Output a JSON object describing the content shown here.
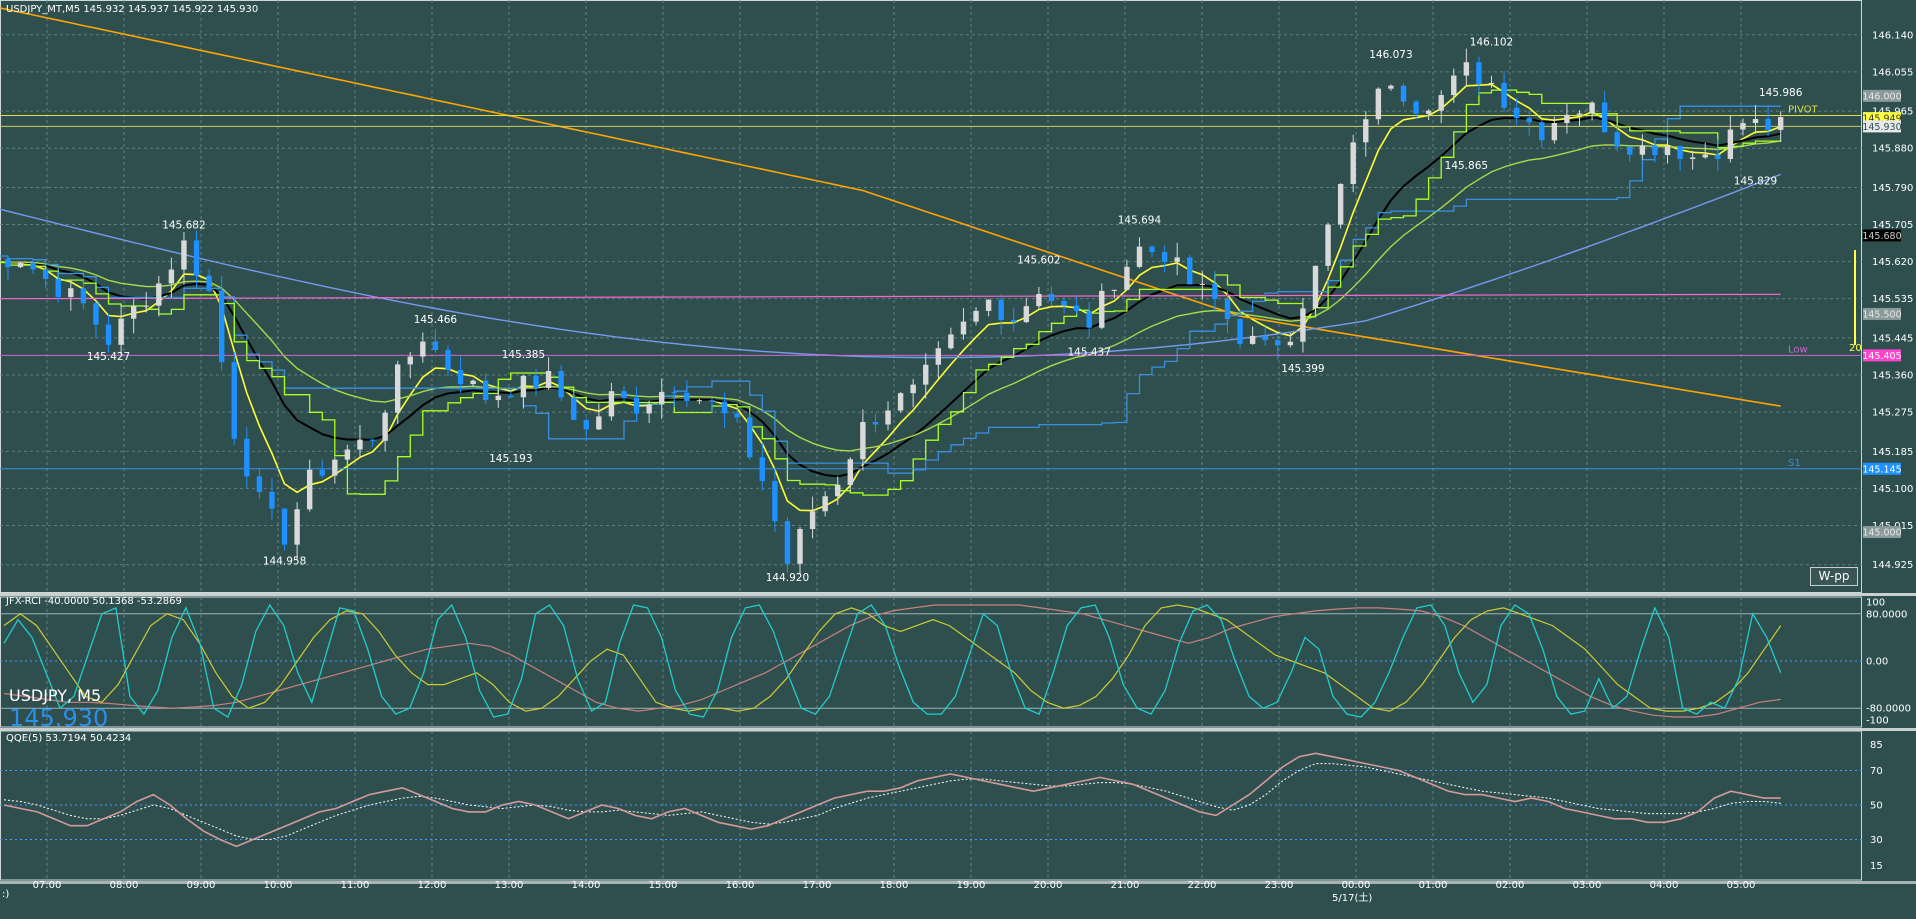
{
  "window": {
    "main_header": "USDJPY_MT,M5  145.932 145.937 145.922 145.930",
    "rci_header": "JFX-RCI -40.0000 50.1368 -53.2869",
    "qqe_header": "QQE(5) 53.7194 50.4234",
    "watermark_symbol": "USDJPY, M5",
    "watermark_price": "145.930",
    "button_label": "W-pp",
    "level_count": "20",
    "date_label": "5/17(土)",
    "corner_mark": ":)"
  },
  "colors": {
    "background": "#2f4f4f",
    "grid": "#6f8f8f",
    "bull_candle": "#d9d9d9",
    "bear_candle": "#1e90ff",
    "ema_yellow": "#ffff33",
    "ema_black": "#000000",
    "ema_green": "#a8d84c",
    "ma200_orange": "#ffa500",
    "ma100_blue": "#7799ee",
    "ichimoku_blue": "#3a8fe0",
    "ichimoku_green": "#aaff22",
    "magenta_line": "#ff66cc",
    "rci_fast": "#22cccc",
    "rci_mid": "#cccc33",
    "rci_slow": "#c98080",
    "qqe_main": "#d29a9a",
    "qqe_signal": "#ffffff"
  },
  "chart_data": [
    {
      "type": "candlestick",
      "symbol": "USDJPY",
      "timeframe": "M5",
      "ylim": [
        144.89,
        146.19
      ],
      "y_ticks": [
        "146.140",
        "146.055",
        "145.965",
        "145.880",
        "145.790",
        "145.705",
        "145.620",
        "145.535",
        "145.445",
        "145.360",
        "145.275",
        "145.185",
        "145.100",
        "145.015",
        "144.925"
      ],
      "x_ticks": [
        "07:00",
        "08:00",
        "09:00",
        "10:00",
        "11:00",
        "12:00",
        "13:00",
        "14:00",
        "15:00",
        "16:00",
        "17:00",
        "18:00",
        "19:00",
        "20:00",
        "21:00",
        "22:00",
        "23:00",
        "00:00",
        "01:00",
        "02:00",
        "03:00",
        "04:00",
        "05:00"
      ],
      "price_path": [
        [
          0,
          145.62
        ],
        [
          3,
          145.63
        ],
        [
          5,
          145.58
        ],
        [
          8,
          145.52
        ],
        [
          10,
          145.44
        ],
        [
          12,
          145.51
        ],
        [
          14,
          145.57
        ],
        [
          16,
          145.66
        ],
        [
          18,
          145.55
        ],
        [
          20,
          145.23
        ],
        [
          22,
          145.07
        ],
        [
          24,
          144.99
        ],
        [
          26,
          145.12
        ],
        [
          28,
          145.17
        ],
        [
          31,
          145.22
        ],
        [
          33,
          145.36
        ],
        [
          35,
          145.45
        ],
        [
          37,
          145.38
        ],
        [
          40,
          145.31
        ],
        [
          42,
          145.33
        ],
        [
          45,
          145.35
        ],
        [
          48,
          145.23
        ],
        [
          50,
          145.31
        ],
        [
          52,
          145.29
        ],
        [
          55,
          145.34
        ],
        [
          58,
          145.29
        ],
        [
          60,
          145.24
        ],
        [
          62,
          145.12
        ],
        [
          64,
          144.93
        ],
        [
          66,
          145.05
        ],
        [
          68,
          145.12
        ],
        [
          70,
          145.24
        ],
        [
          72,
          145.29
        ],
        [
          74,
          145.32
        ],
        [
          76,
          145.4
        ],
        [
          78,
          145.47
        ],
        [
          80,
          145.53
        ],
        [
          82,
          145.49
        ],
        [
          84,
          145.56
        ],
        [
          86,
          145.51
        ],
        [
          88,
          145.48
        ],
        [
          90,
          145.58
        ],
        [
          92,
          145.65
        ],
        [
          94,
          145.64
        ],
        [
          96,
          145.57
        ],
        [
          98,
          145.53
        ],
        [
          100,
          145.45
        ],
        [
          102,
          145.42
        ],
        [
          104,
          145.46
        ],
        [
          106,
          145.6
        ],
        [
          108,
          145.79
        ],
        [
          110,
          145.96
        ],
        [
          112,
          146.04
        ],
        [
          114,
          145.98
        ],
        [
          116,
          146.0
        ],
        [
          118,
          146.06
        ],
        [
          120,
          146.03
        ],
        [
          122,
          145.96
        ],
        [
          124,
          145.92
        ],
        [
          126,
          145.97
        ],
        [
          128,
          145.97
        ],
        [
          130,
          145.9
        ],
        [
          132,
          145.88
        ],
        [
          134,
          145.89
        ],
        [
          136,
          145.86
        ],
        [
          138,
          145.88
        ],
        [
          140,
          145.94
        ],
        [
          142,
          145.93
        ],
        [
          143,
          145.93
        ]
      ],
      "annotations": [
        {
          "label": "145.682",
          "x": 16,
          "y": 145.682,
          "pos": "above"
        },
        {
          "label": "145.427",
          "x": 10,
          "y": 145.427,
          "pos": "below"
        },
        {
          "label": "145.466",
          "x": 36,
          "y": 145.466,
          "pos": "above"
        },
        {
          "label": "145.385",
          "x": 43,
          "y": 145.385,
          "pos": "above"
        },
        {
          "label": "145.193",
          "x": 42,
          "y": 145.193,
          "pos": "below"
        },
        {
          "label": "144.958",
          "x": 24,
          "y": 144.958,
          "pos": "below"
        },
        {
          "label": "144.920",
          "x": 64,
          "y": 144.92,
          "pos": "below"
        },
        {
          "label": "145.602",
          "x": 84,
          "y": 145.602,
          "pos": "above"
        },
        {
          "label": "145.694",
          "x": 92,
          "y": 145.694,
          "pos": "above"
        },
        {
          "label": "145.437",
          "x": 88,
          "y": 145.437,
          "pos": "below"
        },
        {
          "label": "145.399",
          "x": 105,
          "y": 145.399,
          "pos": "below"
        },
        {
          "label": "146.073",
          "x": 112,
          "y": 146.073,
          "pos": "above"
        },
        {
          "label": "146.102",
          "x": 120,
          "y": 146.102,
          "pos": "above"
        },
        {
          "label": "145.865",
          "x": 118,
          "y": 145.865,
          "pos": "below"
        },
        {
          "label": "145.986",
          "x": 143,
          "y": 145.986,
          "pos": "above"
        },
        {
          "label": "145.829",
          "x": 141,
          "y": 145.829,
          "pos": "below"
        }
      ],
      "levels": [
        {
          "name": "PIVOT",
          "value": 145.955,
          "color": "#dddd44"
        },
        {
          "name": "Low",
          "value": 145.405,
          "color": "#cc66cc"
        },
        {
          "name": "S1",
          "value": 145.145,
          "color": "#3a8fe0"
        }
      ],
      "right_tags": [
        {
          "text": "146.000",
          "value": 146.0,
          "bg": "#8a9a9a",
          "fg": "#e8e8e8"
        },
        {
          "text": "145.949",
          "value": 145.949,
          "bg": "#ffff44",
          "fg": "#333333"
        },
        {
          "text": "145.930",
          "value": 145.93,
          "bg": "#e8e8e8",
          "fg": "#2f4f4f"
        },
        {
          "text": "145.680",
          "value": 145.68,
          "bg": "#000000",
          "fg": "#cccccc"
        },
        {
          "text": "145.500",
          "value": 145.5,
          "bg": "#8a9a9a",
          "fg": "#e8e8e8"
        },
        {
          "text": "145.405",
          "value": 145.405,
          "bg": "#ff44cc",
          "fg": "#ffffff"
        },
        {
          "text": "145.145",
          "value": 145.145,
          "bg": "#1e90ff",
          "fg": "#ffffff"
        },
        {
          "text": "145.000",
          "value": 145.0,
          "bg": "#8a9a9a",
          "fg": "#e8e8e8"
        }
      ]
    },
    {
      "type": "line",
      "name_printed": "JFX-RCI",
      "ylim": [
        -100,
        100
      ],
      "y_ticks": [
        "100",
        "80.0000",
        "0.00",
        "-80.0000",
        "-100"
      ],
      "series": [
        {
          "values": [
            30,
            70,
            40,
            -20,
            -80,
            -60,
            10,
            80,
            90,
            -60,
            -90,
            -50,
            40,
            90,
            30,
            -80,
            -95,
            -40,
            50,
            95,
            60,
            -20,
            -70,
            10,
            90,
            85,
            20,
            -60,
            -90,
            -80,
            -20,
            70,
            95,
            40,
            -50,
            -95,
            -90,
            -30,
            80,
            95,
            60,
            -30,
            -85,
            -70,
            30,
            95,
            90,
            40,
            -50,
            -90,
            -95,
            -50,
            40,
            90,
            95,
            50,
            -20,
            -80,
            -90,
            -60,
            10,
            80,
            95,
            60,
            -10,
            -70,
            -90,
            -90,
            -60,
            10,
            80,
            60,
            -20,
            -80,
            -90,
            -20,
            60,
            90,
            95,
            40,
            -40,
            -80,
            -90,
            -50,
            30,
            85,
            95,
            70,
            0,
            -60,
            -80,
            -70,
            -20,
            40,
            20,
            -60,
            -90,
            -95,
            -70,
            -20,
            40,
            90,
            95,
            60,
            -20,
            -70,
            -40,
            60,
            95,
            80,
            20,
            -60,
            -90,
            -85,
            -30,
            -80,
            -60,
            20,
            90,
            40,
            -80,
            -90,
            -70,
            -80,
            -30,
            80,
            40,
            -20
          ]
        },
        {
          "values": [
            60,
            80,
            60,
            20,
            -20,
            -60,
            -70,
            -40,
            10,
            60,
            80,
            70,
            30,
            -20,
            -60,
            -80,
            -70,
            -40,
            0,
            40,
            70,
            85,
            80,
            50,
            10,
            -20,
            -40,
            -40,
            -30,
            -20,
            -40,
            -70,
            -85,
            -80,
            -60,
            -30,
            0,
            20,
            10,
            -30,
            -70,
            -80,
            -85,
            -80,
            -80,
            -85,
            -80,
            -60,
            -30,
            10,
            50,
            80,
            90,
            80,
            60,
            50,
            60,
            70,
            60,
            40,
            20,
            0,
            -20,
            -50,
            -70,
            -80,
            -75,
            -60,
            -30,
            10,
            60,
            90,
            95,
            90,
            80,
            70,
            50,
            30,
            10,
            0,
            -10,
            -20,
            -40,
            -60,
            -80,
            -85,
            -70,
            -40,
            0,
            40,
            70,
            85,
            90,
            80,
            70,
            60,
            40,
            20,
            -10,
            -40,
            -60,
            -80,
            -85,
            -85,
            -80,
            -70,
            -50,
            -20,
            20,
            60
          ]
        },
        {
          "values": [
            -55,
            -60,
            -65,
            -70,
            -70,
            -72,
            -75,
            -78,
            -80,
            -78,
            -75,
            -70,
            -60,
            -50,
            -40,
            -30,
            -20,
            -10,
            0,
            10,
            20,
            25,
            30,
            25,
            10,
            -10,
            -30,
            -50,
            -70,
            -80,
            -85,
            -80,
            -75,
            -65,
            -50,
            -35,
            -20,
            0,
            20,
            40,
            60,
            75,
            85,
            90,
            95,
            95,
            95,
            95,
            95,
            90,
            85,
            80,
            70,
            60,
            50,
            40,
            30,
            40,
            55,
            65,
            75,
            80,
            85,
            88,
            90,
            90,
            88,
            85,
            75,
            60,
            40,
            20,
            0,
            -20,
            -40,
            -60,
            -75,
            -85,
            -92,
            -95,
            -95,
            -90,
            -80,
            -70,
            -65
          ]
        }
      ]
    },
    {
      "type": "line",
      "name_printed": "QQE(5)",
      "ylim": [
        10,
        90
      ],
      "y_ticks": [
        "85",
        "70",
        "50",
        "30",
        "15"
      ],
      "series": [
        {
          "values": [
            50,
            48,
            46,
            42,
            38,
            38,
            42,
            46,
            52,
            56,
            50,
            42,
            35,
            30,
            26,
            30,
            34,
            38,
            42,
            46,
            48,
            52,
            56,
            58,
            60,
            56,
            52,
            48,
            46,
            46,
            50,
            52,
            50,
            46,
            42,
            46,
            50,
            48,
            44,
            42,
            46,
            48,
            44,
            40,
            38,
            36,
            38,
            42,
            46,
            50,
            54,
            56,
            58,
            58,
            60,
            64,
            66,
            68,
            66,
            64,
            62,
            60,
            58,
            60,
            62,
            64,
            66,
            64,
            62,
            58,
            54,
            50,
            46,
            44,
            50,
            56,
            64,
            72,
            78,
            80,
            78,
            76,
            74,
            72,
            70,
            66,
            62,
            58,
            56,
            56,
            54,
            52,
            54,
            52,
            48,
            46,
            44,
            42,
            42,
            40,
            40,
            42,
            46,
            54,
            58,
            56,
            54,
            54
          ]
        },
        {
          "values": [
            53,
            52,
            50,
            47,
            44,
            42,
            42,
            44,
            47,
            50,
            48,
            44,
            40,
            36,
            32,
            30,
            30,
            32,
            36,
            40,
            44,
            47,
            50,
            52,
            54,
            55,
            54,
            52,
            50,
            49,
            48,
            49,
            50,
            49,
            47,
            46,
            46,
            47,
            46,
            45,
            44,
            45,
            46,
            44,
            42,
            40,
            39,
            40,
            42,
            44,
            48,
            51,
            54,
            56,
            58,
            60,
            62,
            64,
            65,
            65,
            64,
            63,
            62,
            61,
            61,
            62,
            63,
            63,
            62,
            60,
            58,
            55,
            52,
            49,
            47,
            50,
            56,
            64,
            70,
            74,
            74,
            73,
            72,
            70,
            68,
            66,
            64,
            62,
            60,
            58,
            57,
            56,
            55,
            54,
            52,
            50,
            48,
            47,
            46,
            45,
            45,
            45,
            46,
            48,
            51,
            52,
            52,
            51
          ]
        }
      ]
    }
  ]
}
